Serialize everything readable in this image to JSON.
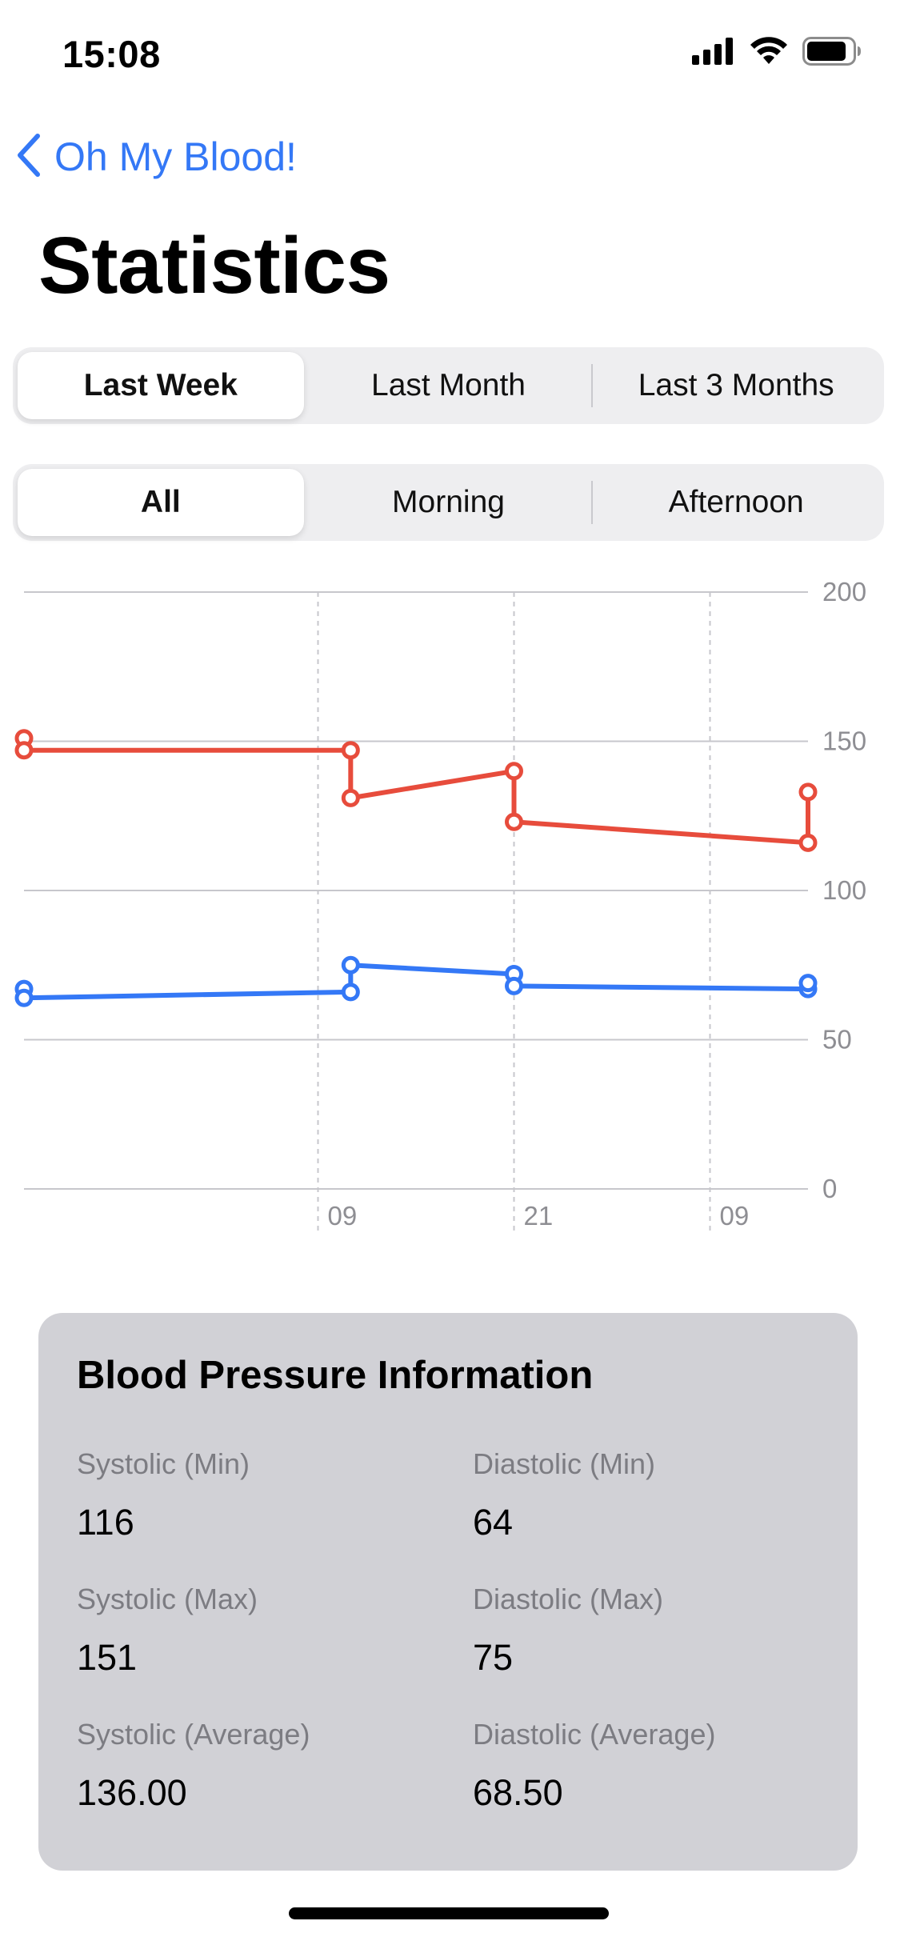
{
  "status_bar": {
    "time": "15:08",
    "icons": [
      "cellular-signal-icon",
      "wifi-icon",
      "battery-icon"
    ]
  },
  "nav": {
    "back_label": "Oh My Blood!",
    "back_icon": "chevron-left-icon"
  },
  "page_title": "Statistics",
  "period_segment": {
    "options": [
      "Last Week",
      "Last Month",
      "Last 3 Months"
    ],
    "selected": "Last Week"
  },
  "time_of_day_segment": {
    "options": [
      "All",
      "Morning",
      "Afternoon"
    ],
    "selected": "All"
  },
  "chart_data": {
    "type": "line",
    "title": "",
    "xlabel": "",
    "ylabel": "",
    "ylim": [
      0,
      200
    ],
    "y_ticks": [
      0,
      50,
      100,
      150,
      200
    ],
    "y_axis_position": "right",
    "x_tick_labels": [
      "09",
      "21",
      "09"
    ],
    "x_tick_hours": [
      9,
      21,
      33
    ],
    "xlim_hours": [
      -9,
      39
    ],
    "grid": true,
    "legend": "none",
    "series": [
      {
        "color": "#E74C3C",
        "points": [
          {
            "x": -9,
            "y": 151
          },
          {
            "x": -9,
            "y": 147
          },
          {
            "x": 11,
            "y": 147
          },
          {
            "x": 11,
            "y": 131
          },
          {
            "x": 21,
            "y": 140
          },
          {
            "x": 21,
            "y": 123
          },
          {
            "x": 39,
            "y": 116
          },
          {
            "x": 39,
            "y": 133
          }
        ]
      },
      {
        "color": "#3478F6",
        "points": [
          {
            "x": -9,
            "y": 67
          },
          {
            "x": -9,
            "y": 64
          },
          {
            "x": 11,
            "y": 66
          },
          {
            "x": 11,
            "y": 75
          },
          {
            "x": 21,
            "y": 72
          },
          {
            "x": 21,
            "y": 68
          },
          {
            "x": 39,
            "y": 67
          },
          {
            "x": 39,
            "y": 69
          }
        ]
      }
    ]
  },
  "info": {
    "title": "Blood Pressure Information",
    "systolic_min_label": "Systolic (Min)",
    "systolic_min_value": "116",
    "diastolic_min_label": "Diastolic (Min)",
    "diastolic_min_value": "64",
    "systolic_max_label": "Systolic (Max)",
    "systolic_max_value": "151",
    "diastolic_max_label": "Diastolic (Max)",
    "diastolic_max_value": "75",
    "systolic_avg_label": "Systolic (Average)",
    "systolic_avg_value": "136.00",
    "diastolic_avg_label": "Diastolic (Average)",
    "diastolic_avg_value": "68.50"
  },
  "colors": {
    "accent": "#3478F6",
    "systolic": "#E74C3C",
    "diastolic": "#3478F6",
    "card_background": "#D1D1D6"
  }
}
